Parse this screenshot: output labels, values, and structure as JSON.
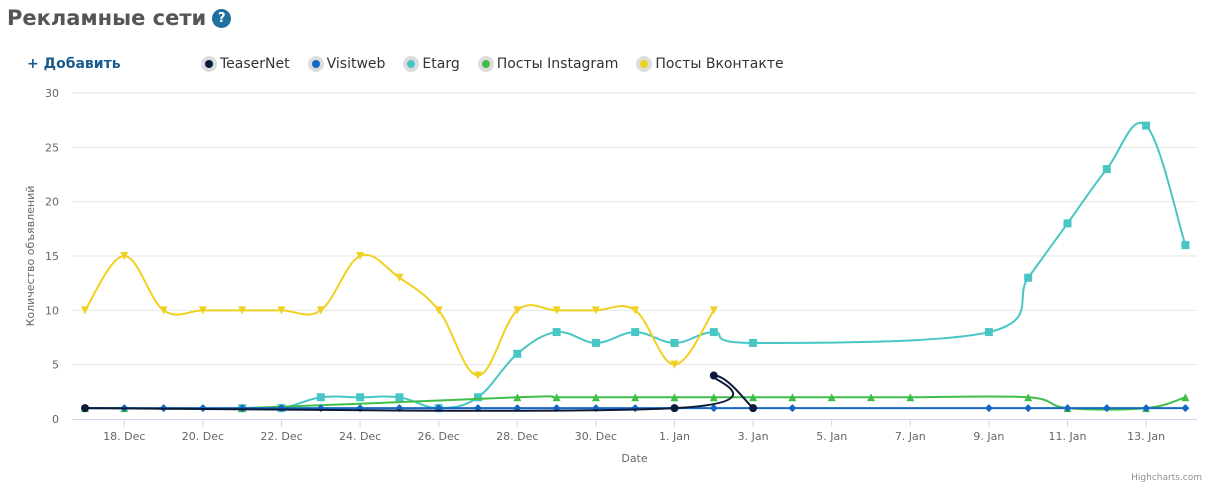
{
  "page": {
    "title": "Рекламные сети",
    "help_icon": "?",
    "add_label": "+ Добавить",
    "credits": "Highcharts.com"
  },
  "legend": [
    {
      "name": "TeaserNet",
      "color": "#0b1a3a"
    },
    {
      "name": "Visitweb",
      "color": "#1468c4"
    },
    {
      "name": "Etarg",
      "color": "#48c6c5"
    },
    {
      "name": "Посты Instagram",
      "color": "#3fbf4a"
    },
    {
      "name": "Посты Вконтакте",
      "color": "#f0d020"
    }
  ],
  "chart_data": {
    "type": "line",
    "xlabel": "Date",
    "ylabel": "Количество объявлений",
    "ylim": [
      0,
      30
    ],
    "yticks": [
      0,
      5,
      10,
      15,
      20,
      25,
      30
    ],
    "x_axis": {
      "start": "17. Dec",
      "end": "14. Jan",
      "ticks": [
        {
          "day": 1,
          "label": "18. Dec"
        },
        {
          "day": 3,
          "label": "20. Dec"
        },
        {
          "day": 5,
          "label": "22. Dec"
        },
        {
          "day": 7,
          "label": "24. Dec"
        },
        {
          "day": 9,
          "label": "26. Dec"
        },
        {
          "day": 11,
          "label": "28. Dec"
        },
        {
          "day": 13,
          "label": "30. Dec"
        },
        {
          "day": 15,
          "label": "1. Jan"
        },
        {
          "day": 17,
          "label": "3. Jan"
        },
        {
          "day": 19,
          "label": "5. Jan"
        },
        {
          "day": 21,
          "label": "7. Jan"
        },
        {
          "day": 23,
          "label": "9. Jan"
        },
        {
          "day": 25,
          "label": "11. Jan"
        },
        {
          "day": 27,
          "label": "13. Jan"
        }
      ]
    },
    "grid": "horizontal",
    "legend_position": "top",
    "series": [
      {
        "name": "TeaserNet",
        "color": "#0b1a3a",
        "marker": "circle",
        "points": [
          [
            0,
            1
          ],
          [
            15,
            1
          ],
          [
            16,
            4
          ],
          [
            17,
            1
          ]
        ]
      },
      {
        "name": "Visitweb",
        "color": "#1468c4",
        "marker": "diamond",
        "points": [
          [
            0,
            1
          ],
          [
            1,
            1
          ],
          [
            2,
            1
          ],
          [
            3,
            1
          ],
          [
            4,
            1
          ],
          [
            5,
            1
          ],
          [
            6,
            1
          ],
          [
            7,
            1
          ],
          [
            8,
            1
          ],
          [
            9,
            1
          ],
          [
            10,
            1
          ],
          [
            11,
            1
          ],
          [
            12,
            1
          ],
          [
            13,
            1
          ],
          [
            14,
            1
          ],
          [
            15,
            1
          ],
          [
            16,
            1
          ],
          [
            17,
            1
          ],
          [
            18,
            1
          ],
          [
            23,
            1
          ],
          [
            24,
            1
          ],
          [
            25,
            1
          ],
          [
            26,
            1
          ],
          [
            27,
            1
          ],
          [
            28,
            1
          ]
        ]
      },
      {
        "name": "Etarg",
        "color": "#48c6c5",
        "marker": "square",
        "points": [
          [
            4,
            1
          ],
          [
            5,
            1
          ],
          [
            6,
            2
          ],
          [
            7,
            2
          ],
          [
            8,
            2
          ],
          [
            9,
            1
          ],
          [
            10,
            2
          ],
          [
            11,
            6
          ],
          [
            12,
            8
          ],
          [
            13,
            7
          ],
          [
            14,
            8
          ],
          [
            15,
            7
          ],
          [
            16,
            8
          ],
          [
            17,
            7
          ],
          [
            23,
            8
          ],
          [
            24,
            13
          ],
          [
            25,
            18
          ],
          [
            26,
            23
          ],
          [
            27,
            27
          ],
          [
            28,
            16
          ]
        ]
      },
      {
        "name": "Посты Instagram",
        "color": "#3fbf4a",
        "marker": "triangle",
        "points": [
          [
            0,
            1
          ],
          [
            1,
            1
          ],
          [
            4,
            1
          ],
          [
            11,
            2
          ],
          [
            12,
            2
          ],
          [
            13,
            2
          ],
          [
            14,
            2
          ],
          [
            15,
            2
          ],
          [
            16,
            2
          ],
          [
            17,
            2
          ],
          [
            18,
            2
          ],
          [
            19,
            2
          ],
          [
            20,
            2
          ],
          [
            21,
            2
          ],
          [
            24,
            2
          ],
          [
            25,
            1
          ],
          [
            27,
            1
          ],
          [
            28,
            2
          ]
        ]
      },
      {
        "name": "Посты Вконтакте",
        "color": "#f0d020",
        "marker": "triangle-down",
        "points": [
          [
            0,
            10
          ],
          [
            1,
            15
          ],
          [
            2,
            10
          ],
          [
            3,
            10
          ],
          [
            4,
            10
          ],
          [
            5,
            10
          ],
          [
            6,
            10
          ],
          [
            7,
            15
          ],
          [
            8,
            13
          ],
          [
            9,
            10
          ],
          [
            10,
            4
          ],
          [
            11,
            10
          ],
          [
            12,
            10
          ],
          [
            13,
            10
          ],
          [
            14,
            10
          ],
          [
            15,
            5
          ],
          [
            16,
            10
          ]
        ]
      }
    ]
  }
}
